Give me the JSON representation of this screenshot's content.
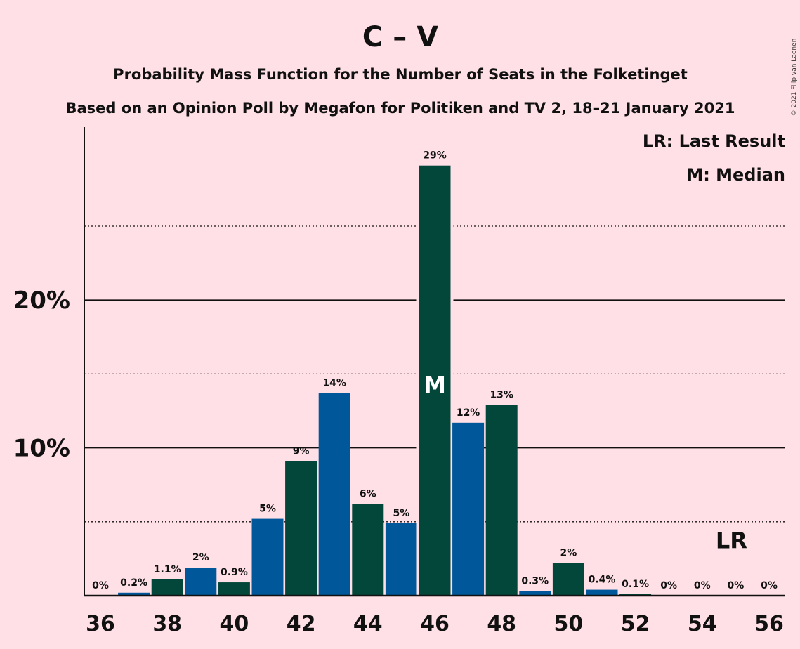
{
  "chart_data": {
    "type": "bar",
    "title": "C – V",
    "subtitle": "Probability Mass Function for the Number of Seats in the Folketinget",
    "subtitle2": "Based on an Opinion Poll by Megafon for Politiken and TV 2, 18–21 January 2021",
    "copyright": "© 2021 Filip van Laenen",
    "legend": {
      "last_result": "LR: Last Result",
      "median": "M: Median",
      "placement": "top-right"
    },
    "x": [
      36,
      37,
      38,
      39,
      40,
      41,
      42,
      43,
      44,
      45,
      46,
      47,
      48,
      49,
      50,
      51,
      52,
      53,
      54,
      55,
      56
    ],
    "values": [
      0.0,
      0.2,
      1.1,
      1.9,
      0.9,
      5.2,
      9.1,
      13.7,
      6.2,
      4.9,
      29.1,
      11.7,
      12.9,
      0.3,
      2.2,
      0.4,
      0.1,
      0.0,
      0.0,
      0.0,
      0.0
    ],
    "labels": [
      "0%",
      "0.2%",
      "1.1%",
      "2%",
      "0.9%",
      "5%",
      "9%",
      "14%",
      "6%",
      "5%",
      "29%",
      "12%",
      "13%",
      "0.3%",
      "2%",
      "0.4%",
      "0.1%",
      "0%",
      "0%",
      "0%",
      "0%"
    ],
    "x_ticks": [
      "36",
      "38",
      "40",
      "42",
      "44",
      "46",
      "48",
      "50",
      "52",
      "54",
      "56"
    ],
    "y_ticks": [
      {
        "value": 10,
        "label": "10%"
      },
      {
        "value": 20,
        "label": "20%"
      }
    ],
    "y_minor_gridlines": [
      5,
      15,
      25
    ],
    "ylim": [
      0,
      31.7
    ],
    "median_seat": 46,
    "median_marker": "M",
    "last_result_seat": 55,
    "last_result_marker": "LR",
    "colors": {
      "blue": "#00579A",
      "green": "#03473A",
      "background": "#FFE0E6"
    }
  }
}
